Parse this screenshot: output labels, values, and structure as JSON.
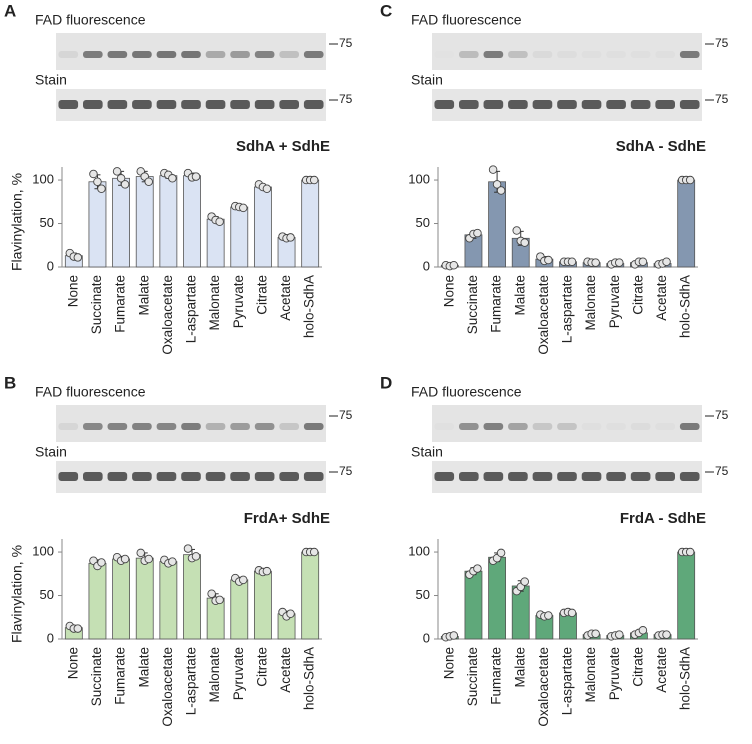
{
  "chart_data": [
    {
      "type": "bar",
      "panel_label": "A",
      "gel_labels": [
        "FAD fluorescence",
        "Stain"
      ],
      "markers": [
        75,
        75
      ],
      "title": "SdhA + SdhE",
      "y_label": "Flavinylation, %",
      "categories": [
        "None",
        "Succinate",
        "Fumarate",
        "Malate",
        "Oxaloacetate",
        "L-aspartate",
        "Malonate",
        "Pyruvate",
        "Citrate",
        "Acetate",
        "holo-SdhA"
      ],
      "values": [
        13,
        98,
        102,
        104,
        105,
        105,
        55,
        69,
        92,
        34,
        100
      ],
      "errors": [
        3,
        8,
        8,
        6,
        3,
        3,
        3,
        1,
        3,
        1,
        0
      ],
      "points": [
        [
          16,
          12,
          11
        ],
        [
          107,
          98,
          90
        ],
        [
          110,
          102,
          95
        ],
        [
          110,
          104,
          98
        ],
        [
          108,
          106,
          102
        ],
        [
          108,
          103,
          104
        ],
        [
          58,
          54,
          52
        ],
        [
          70,
          69,
          68
        ],
        [
          95,
          92,
          90
        ],
        [
          35,
          33,
          34
        ],
        [
          100,
          100,
          100
        ]
      ],
      "color": "#dae3f3",
      "ylim": [
        0,
        115
      ],
      "yticks": [
        0,
        50,
        100
      ]
    },
    {
      "type": "bar",
      "panel_label": "B",
      "gel_labels": [
        "FAD fluorescence",
        "Stain"
      ],
      "markers": [
        75,
        75
      ],
      "title": "FrdA+ SdhE",
      "y_label": "Flavinylation, %",
      "categories": [
        "None",
        "Succinate",
        "Fumarate",
        "Malate",
        "Oxaloacetate",
        "L-aspartate",
        "Malonate",
        "Pyruvate",
        "Citrate",
        "Acetate",
        "holo-SdhA"
      ],
      "values": [
        13,
        87,
        92,
        93,
        89,
        97,
        47,
        68,
        78,
        29,
        100
      ],
      "errors": [
        2,
        4,
        3,
        6,
        2,
        6,
        5,
        3,
        2,
        3,
        0
      ],
      "points": [
        [
          15,
          12,
          12
        ],
        [
          90,
          84,
          88
        ],
        [
          94,
          90,
          92
        ],
        [
          99,
          90,
          92
        ],
        [
          91,
          87,
          89
        ],
        [
          104,
          93,
          95
        ],
        [
          52,
          44,
          45
        ],
        [
          70,
          66,
          68
        ],
        [
          79,
          77,
          78
        ],
        [
          31,
          26,
          29
        ],
        [
          100,
          100,
          100
        ]
      ],
      "color": "#c5e0b4",
      "ylim": [
        0,
        115
      ],
      "yticks": [
        0,
        50,
        100
      ]
    },
    {
      "type": "bar",
      "panel_label": "C",
      "gel_labels": [
        "FAD fluorescence",
        "Stain"
      ],
      "markers": [
        75,
        75
      ],
      "title": "SdhA - SdhE",
      "categories": [
        "None",
        "Succinate",
        "Fumarate",
        "Malate",
        "Oxaloacetate",
        "L-aspartate",
        "Malonate",
        "Pyruvate",
        "Citrate",
        "Acetate",
        "holo-SdhA"
      ],
      "values": [
        2,
        37,
        98,
        33,
        9,
        6,
        5,
        4,
        5,
        4,
        100
      ],
      "errors": [
        1,
        4,
        12,
        8,
        3,
        0,
        1,
        1,
        2,
        1,
        0
      ],
      "points": [
        [
          2,
          1,
          2
        ],
        [
          33,
          38,
          39
        ],
        [
          112,
          95,
          88
        ],
        [
          42,
          30,
          28
        ],
        [
          12,
          7,
          8
        ],
        [
          6,
          6,
          6
        ],
        [
          6,
          5,
          5
        ],
        [
          3,
          5,
          5
        ],
        [
          3,
          6,
          6
        ],
        [
          3,
          4,
          6
        ],
        [
          100,
          100,
          100
        ]
      ],
      "color": "#8497b0",
      "ylim": [
        0,
        115
      ],
      "yticks": [
        0,
        50,
        100
      ]
    },
    {
      "type": "bar",
      "panel_label": "D",
      "gel_labels": [
        "FAD fluorescence",
        "Stain"
      ],
      "markers": [
        75,
        75
      ],
      "title": "FrdA - SdhE",
      "categories": [
        "None",
        "Succinate",
        "Fumarate",
        "Malate",
        "Oxaloacetate",
        "L-aspartate",
        "Malonate",
        "Pyruvate",
        "Citrate",
        "Acetate",
        "holo-SdhA"
      ],
      "values": [
        3,
        78,
        94,
        61,
        27,
        30,
        5,
        4,
        7,
        5,
        100
      ],
      "errors": [
        1,
        4,
        5,
        6,
        1,
        1,
        1,
        1,
        3,
        1,
        0
      ],
      "points": [
        [
          2,
          3,
          4
        ],
        [
          74,
          78,
          81
        ],
        [
          90,
          93,
          99
        ],
        [
          55,
          60,
          66
        ],
        [
          28,
          26,
          27
        ],
        [
          30,
          31,
          30
        ],
        [
          4,
          6,
          6
        ],
        [
          3,
          4,
          5
        ],
        [
          5,
          7,
          10
        ],
        [
          4,
          5,
          5
        ],
        [
          100,
          100,
          100
        ]
      ],
      "color": "#5fa87a",
      "ylim": [
        0,
        115
      ],
      "yticks": [
        0,
        50,
        100
      ]
    }
  ]
}
